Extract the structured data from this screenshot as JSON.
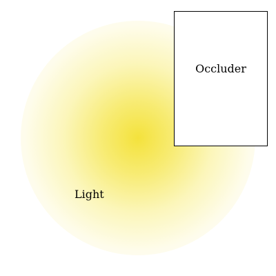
{
  "diagram": {
    "light": {
      "label": "Light",
      "color": "#F4E23C"
    },
    "occluder": {
      "label": "Occluder",
      "fill": "#FFFFFF",
      "stroke": "#000000"
    },
    "background": "#FFFFFF"
  }
}
